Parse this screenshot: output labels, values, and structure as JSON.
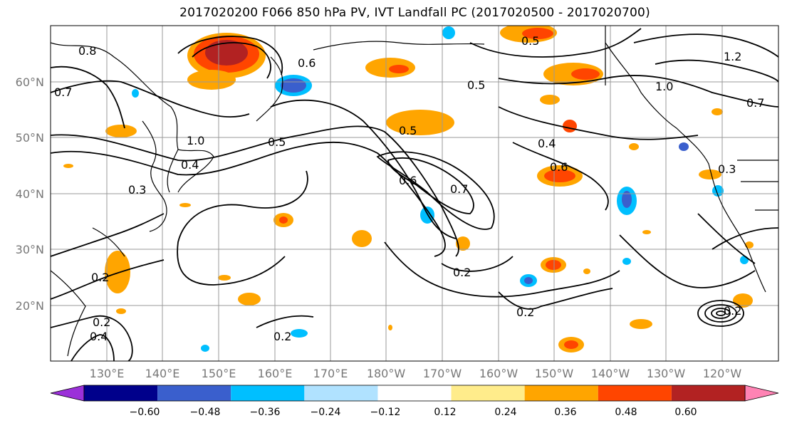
{
  "title": "2017020200 F066 850 hPa PV, IVT Landfall PC (2017020500 - 2017020700)",
  "lat_labels": [
    "60°N",
    "50°N",
    "40°N",
    "30°N",
    "20°N"
  ],
  "lon_labels": [
    "130°E",
    "140°E",
    "150°E",
    "160°E",
    "170°E",
    "180°W",
    "170°W",
    "160°W",
    "150°W",
    "140°W",
    "130°W",
    "120°W"
  ],
  "contour_labels": [
    "0.8",
    "0.6",
    "0.7",
    "0.5",
    "1.0",
    "0.4",
    "0.3",
    "0.2",
    "0.5",
    "0.6",
    "0.7",
    "0.4",
    "0.6",
    "0.2",
    "0.2",
    "0.2",
    "0.5",
    "1.0",
    "1.2",
    "0.7",
    "0.3",
    "0.2",
    "0.4",
    "0.2",
    "0.5"
  ],
  "colorbar": {
    "ticks": [
      "−0.60",
      "−0.48",
      "−0.36",
      "−0.24",
      "−0.12",
      "0.12",
      "0.24",
      "0.36",
      "0.48",
      "0.60"
    ],
    "colors": [
      "#9b30d9",
      "#00008b",
      "#3a5fcd",
      "#00bfff",
      "#b0e2ff",
      "#ffffff",
      "#ffec8b",
      "#ffa500",
      "#ff4500",
      "#b22222",
      "#ff83b4"
    ]
  },
  "colors": {
    "coast": "#000000",
    "grid": "#999999",
    "contour": "#000000"
  }
}
